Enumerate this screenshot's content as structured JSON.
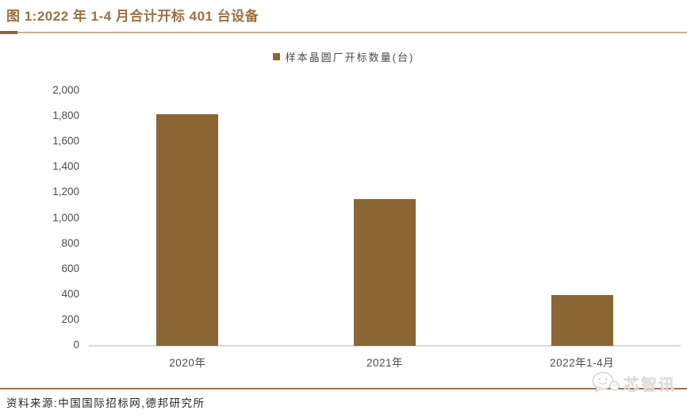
{
  "header": {
    "title": "图 1:2022 年 1-4 月合计开标 401 台设备"
  },
  "chart_data": {
    "type": "bar",
    "title": "图 1:2022 年 1-4 月合计开标 401 台设备",
    "legend": [
      "样本晶圆厂开标数量(台)"
    ],
    "legend_position": "top-center",
    "categories": [
      "2020年",
      "2021年",
      "2022年1-4月"
    ],
    "values": [
      1820,
      1150,
      401
    ],
    "xlabel": "",
    "ylabel": "",
    "ylim": [
      0,
      2000
    ],
    "ytick_step": 200,
    "ytick_labels": [
      "0",
      "200",
      "400",
      "600",
      "800",
      "1,000",
      "1,200",
      "1,400",
      "1,600",
      "1,800",
      "2,000"
    ],
    "grid": false,
    "bar_color": "#8A6634"
  },
  "footer": {
    "source": "资料来源:中国国际招标网,德邦研究所",
    "watermark": "芯智讯"
  },
  "colors": {
    "title_text": "#9D6F45",
    "bar": "#8A6634",
    "axis_line": "#D9D9D9",
    "tick_text": "#4D4D4D",
    "bottom_rule": "#9B7351",
    "title_rule": "#C9B098"
  }
}
